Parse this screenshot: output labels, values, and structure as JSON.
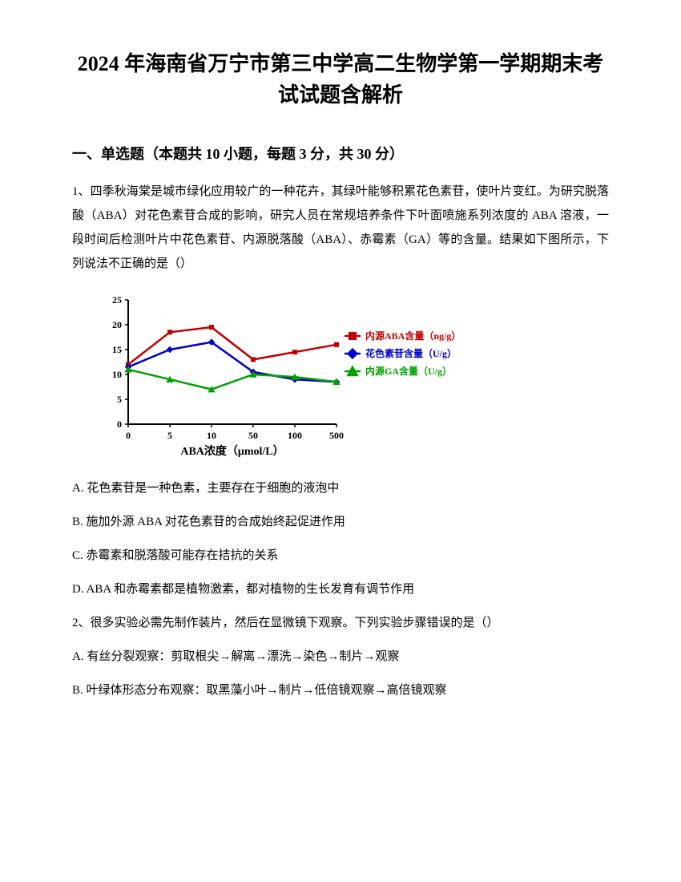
{
  "title": "2024 年海南省万宁市第三中学高二生物学第一学期期末考试试题含解析",
  "section_header": "一、单选题（本题共 10 小题，每题 3 分，共 30 分）",
  "q1": {
    "intro": "1、四季秋海棠是城市绿化应用较广的一种花卉，其绿叶能够积累花色素苷，使叶片变红。为研究脱落酸（ABA）对花色素苷合成的影响，研究人员在常规培养条件下叶面喷施系列浓度的 ABA 溶液，一段时间后检测叶片中花色素苷、内源脱落酸（ABA）、赤霉素（GA）等的含量。结果如下图所示，下列说法不正确的是（）",
    "option_a": "A. 花色素苷是一种色素，主要存在于细胞的液泡中",
    "option_b": "B. 施加外源 ABA 对花色素苷的合成始终起促进作用",
    "option_c": "C. 赤霉素和脱落酸可能存在拮抗的关系",
    "option_d": "D. ABA 和赤霉素都是植物激素，都对植物的生长发育有调节作用"
  },
  "q2": {
    "intro": "2、很多实验必需先制作装片，然后在显微镜下观察。下列实验步骤错误的是（）",
    "option_a": "A. 有丝分裂观察：剪取根尖→解离→漂洗→染色→制片→观察",
    "option_b": "B. 叶绿体形态分布观察：取黑藻小叶→制片→低倍镜观察→高倍镜观察"
  },
  "chart": {
    "type": "line",
    "xlabel": "ABA浓度（μmol/L）",
    "x_categories": [
      "0",
      "5",
      "10",
      "50",
      "100",
      "500"
    ],
    "y_ticks": [
      0,
      5,
      10,
      15,
      20,
      25
    ],
    "ylim": [
      0,
      25
    ],
    "series": [
      {
        "name": "内源ABA含量（ng/g）",
        "color": "#c00000",
        "marker": "square",
        "values": [
          12,
          18.5,
          19.5,
          13,
          14.5,
          16
        ]
      },
      {
        "name": "花色素苷含量（U/g）",
        "color": "#0000cc",
        "marker": "diamond",
        "values": [
          11.5,
          15,
          16.5,
          10.5,
          9,
          8.5
        ]
      },
      {
        "name": "内源GA含量（U/g）",
        "color": "#00a000",
        "marker": "triangle",
        "values": [
          11,
          9,
          7,
          10,
          9.5,
          8.5
        ]
      }
    ],
    "axis_color": "#000000",
    "line_width": 2.5,
    "marker_size": 6,
    "font_size_axis": 12,
    "font_size_legend": 12,
    "font_weight": "bold",
    "legend_marker_size": 10
  }
}
